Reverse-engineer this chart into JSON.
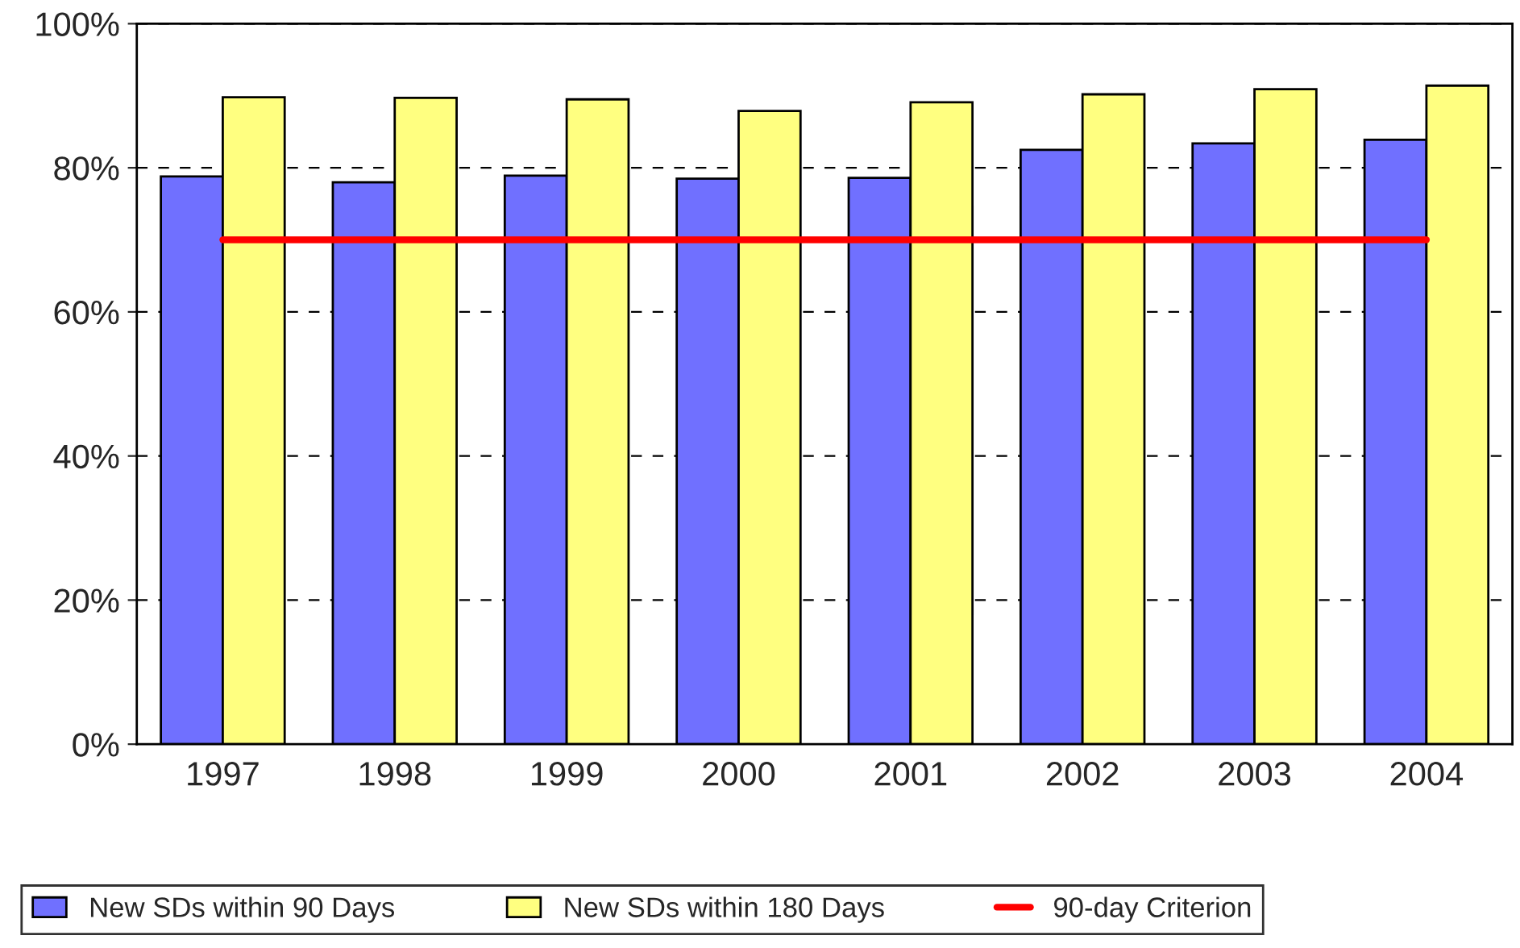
{
  "chart_data": {
    "type": "bar",
    "categories": [
      "1997",
      "1998",
      "1999",
      "2000",
      "2001",
      "2002",
      "2003",
      "2004"
    ],
    "series": [
      {
        "name": "New SDs within 90 Days",
        "color": "#7070ff",
        "values": [
          78.8,
          78.0,
          78.9,
          78.5,
          78.6,
          82.5,
          83.4,
          83.9
        ]
      },
      {
        "name": "New SDs within 180 Days",
        "color": "#ffff80",
        "values": [
          89.8,
          89.7,
          89.5,
          87.9,
          89.1,
          90.2,
          90.9,
          91.4
        ]
      },
      {
        "name": "90-day Criterion",
        "type": "line",
        "color": "#ff0000",
        "values": [
          70,
          70,
          70,
          70,
          70,
          70,
          70,
          70
        ]
      }
    ],
    "ylim": [
      0,
      100
    ],
    "yticks": [
      {
        "value": 0,
        "label": "0%"
      },
      {
        "value": 20,
        "label": "20%"
      },
      {
        "value": 40,
        "label": "40%"
      },
      {
        "value": 60,
        "label": "60%"
      },
      {
        "value": 80,
        "label": "80%"
      },
      {
        "value": 100,
        "label": "100%"
      }
    ],
    "grid": "y",
    "legend": "bottom",
    "line_style": "solid",
    "marker": "none"
  }
}
